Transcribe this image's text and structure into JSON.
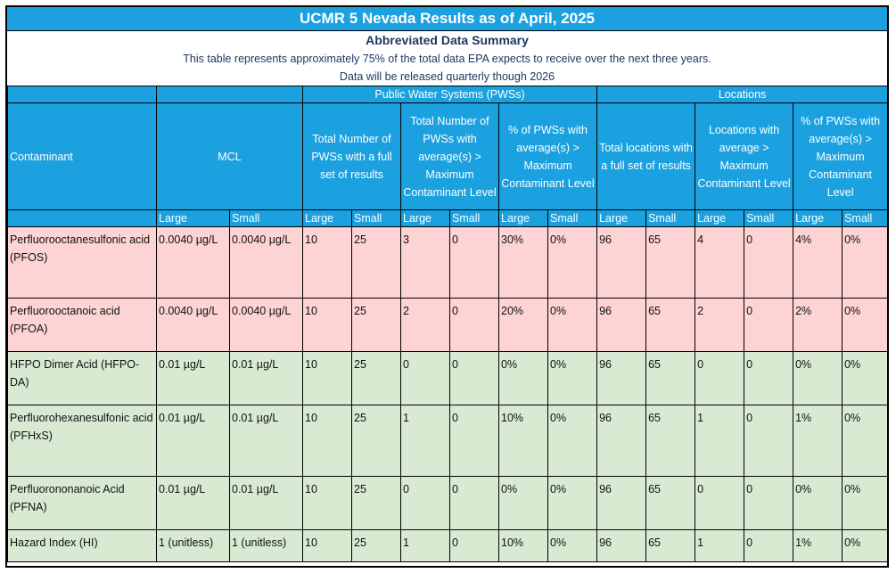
{
  "title": "UCMR 5 Nevada Results as of April, 2025",
  "subtitle": "Abbreviated Data Summary",
  "note1": "This table represents approximately 75% of the total data EPA expects to receive over the next three years.",
  "note2": "Data will be released quarterly though 2026",
  "group_pws": "Public Water Systems (PWSs)",
  "group_locations": "Locations",
  "headers": {
    "contaminant": "Contaminant",
    "mcl": "MCL",
    "pws_total": "Total Number of PWSs with a full set of  results",
    "pws_above": "Total Number of PWSs with average(s) > Maximum Contaminant Level",
    "pws_pct": "% of PWSs with average(s) > Maximum Contaminant Level",
    "loc_total": "Total locations with a full set of results",
    "loc_above": "Locations with average > Maximum Contaminant Level",
    "loc_pct": "% of PWSs with average(s) > Maximum Contaminant Level"
  },
  "size_labels": [
    "Large",
    "Small",
    "Large",
    "Small",
    "Large",
    "Small",
    "Large",
    "Small",
    "Large",
    "Small",
    "Large",
    "Small",
    "Large",
    "Small"
  ],
  "rows": [
    {
      "name": "Perfluorooctanesulfonic acid (PFOS)",
      "cells": [
        "0.0040 µg/L",
        "0.0040 µg/L",
        "10",
        "25",
        "3",
        "0",
        "30%",
        "0%",
        "96",
        "65",
        "4",
        "0",
        "4%",
        "0%"
      ]
    },
    {
      "name": "Perfluorooctanoic acid (PFOA)",
      "cells": [
        "0.0040 µg/L",
        "0.0040 µg/L",
        "10",
        "25",
        "2",
        "0",
        "20%",
        "0%",
        "96",
        "65",
        "2",
        "0",
        "2%",
        "0%"
      ]
    },
    {
      "name": "HFPO Dimer Acid (HFPO-DA)",
      "cells": [
        "0.01 µg/L",
        "0.01 µg/L",
        "10",
        "25",
        "0",
        "0",
        "0%",
        "0%",
        "96",
        "65",
        "0",
        "0",
        "0%",
        "0%"
      ]
    },
    {
      "name": "Perfluorohexanesulfonic acid (PFHxS)",
      "cells": [
        "0.01 µg/L",
        "0.01 µg/L",
        "10",
        "25",
        "1",
        "0",
        "10%",
        "0%",
        "96",
        "65",
        "1",
        "0",
        "1%",
        "0%"
      ]
    },
    {
      "name": "Perfluorononanoic Acid (PFNA)",
      "cells": [
        "0.01 µg/L",
        "0.01 µg/L",
        "10",
        "25",
        "0",
        "0",
        "0%",
        "0%",
        "96",
        "65",
        "0",
        "0",
        "0%",
        "0%"
      ]
    },
    {
      "name": "Hazard Index (HI)",
      "cells": [
        "1 (unitless)",
        "1 (unitless)",
        "10",
        "25",
        "1",
        "0",
        "10%",
        "0%",
        "96",
        "65",
        "1",
        "0",
        "1%",
        "0%"
      ]
    }
  ],
  "colors": {
    "header_blue": "#1ba1df",
    "exceed_row": "#fdd3d3",
    "ok_row": "#d8ebd2",
    "subtitle_text": "#1f3763"
  }
}
